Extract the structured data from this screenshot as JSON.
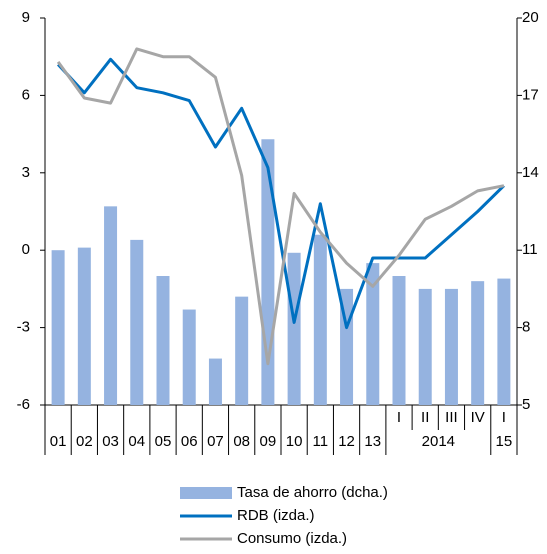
{
  "chart_data": {
    "type": "bar_line",
    "categories": [
      "01",
      "02",
      "03",
      "04",
      "05",
      "06",
      "07",
      "08",
      "09",
      "10",
      "11",
      "12",
      "13",
      "I",
      "II",
      "III",
      "IV",
      "I"
    ],
    "groups": [
      {
        "label": "2014",
        "size": 4
      },
      {
        "label": "15",
        "size": 1
      }
    ],
    "series": [
      {
        "name": "Tasa de ahorro (dcha.)",
        "type": "bar",
        "axis": "y2",
        "color": "#95b3e0",
        "values": [
          11.0,
          11.1,
          12.7,
          11.4,
          10.0,
          8.7,
          6.8,
          9.2,
          15.3,
          10.9,
          11.6,
          9.5,
          10.5,
          10.0,
          9.5,
          9.5,
          9.8,
          9.9
        ]
      },
      {
        "name": "RDB (izda.)",
        "type": "line",
        "color": "#0070c0",
        "values": [
          7.2,
          6.1,
          7.4,
          6.3,
          6.1,
          5.8,
          4.0,
          5.5,
          3.2,
          -2.8,
          1.8,
          -3.0,
          -0.3,
          -0.3,
          -0.3,
          0.6,
          1.5,
          2.5
        ]
      },
      {
        "name": "Consumo (izda.)",
        "type": "line",
        "color": "#a6a6a6",
        "values": [
          7.3,
          5.9,
          5.7,
          7.8,
          7.5,
          7.5,
          6.7,
          2.9,
          -4.4,
          2.2,
          0.7,
          -0.5,
          -1.4,
          -0.2,
          1.2,
          1.7,
          2.3,
          2.5
        ]
      }
    ],
    "ylim": [
      -6,
      9
    ],
    "yticks": [
      -6,
      -3,
      0,
      3,
      6,
      9
    ],
    "y2lim": [
      5,
      20
    ],
    "y2ticks": [
      5,
      8,
      11,
      14,
      17,
      20
    ],
    "legend": "bottom"
  }
}
